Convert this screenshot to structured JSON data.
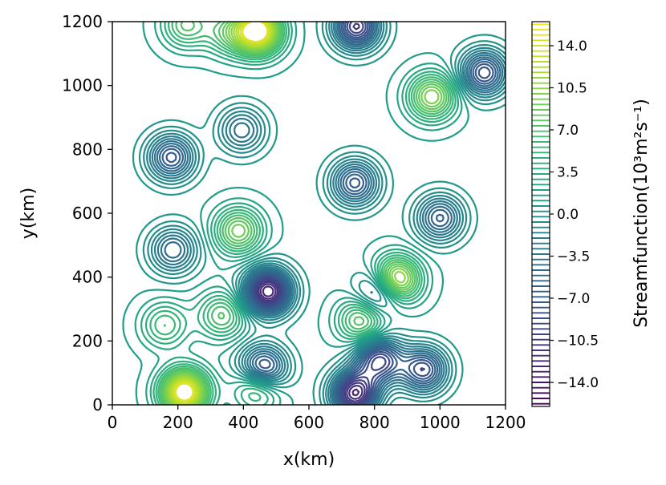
{
  "chart_data": {
    "type": "contour",
    "xlabel": "x(km)",
    "ylabel": "y(km)",
    "xlim": [
      0,
      1200
    ],
    "ylim": [
      0,
      1200
    ],
    "x_ticks": [
      0,
      200,
      400,
      600,
      800,
      1000,
      1200
    ],
    "y_ticks": [
      0,
      200,
      400,
      600,
      800,
      1000,
      1200
    ],
    "x_tick_labels": [
      "0",
      "200",
      "400",
      "600",
      "800",
      "1000",
      "1200"
    ],
    "y_tick_labels": [
      "0",
      "200",
      "400",
      "600",
      "800",
      "1000",
      "1200"
    ],
    "grid": false,
    "colormap": "viridis",
    "colorbar": {
      "label": "Streamfunction(10³m²s⁻¹)",
      "vmin": -16,
      "vmax": 16,
      "ticks": [
        14.0,
        10.5,
        7.0,
        3.5,
        0.0,
        -3.5,
        -7.0,
        -10.5,
        -14.0
      ],
      "tick_labels": [
        "14.0",
        "10.5",
        "7.0",
        "3.5",
        "0.0",
        "−3.5",
        "−7.0",
        "−10.5",
        "−14.0"
      ]
    },
    "centers": [
      {
        "x": 220,
        "y": 40,
        "value": 15
      },
      {
        "x": 445,
        "y": 1170,
        "value": 15
      },
      {
        "x": 865,
        "y": 390,
        "value": 13
      },
      {
        "x": 975,
        "y": 965,
        "value": 9
      },
      {
        "x": 385,
        "y": 545,
        "value": 8
      },
      {
        "x": 760,
        "y": 265,
        "value": 7
      },
      {
        "x": 335,
        "y": 280,
        "value": 6
      },
      {
        "x": 445,
        "y": 60,
        "value": 8
      },
      {
        "x": 225,
        "y": 1190,
        "value": 6
      },
      {
        "x": 355,
        "y": 1165,
        "value": 5
      },
      {
        "x": 160,
        "y": 250,
        "value": 5
      },
      {
        "x": 475,
        "y": 355,
        "value": -15
      },
      {
        "x": 740,
        "y": 35,
        "value": -14
      },
      {
        "x": 460,
        "y": 110,
        "value": -12
      },
      {
        "x": 815,
        "y": 140,
        "value": -11
      },
      {
        "x": 950,
        "y": 110,
        "value": -10
      },
      {
        "x": 745,
        "y": 1185,
        "value": -12
      },
      {
        "x": 1135,
        "y": 1040,
        "value": -10
      },
      {
        "x": 740,
        "y": 695,
        "value": -9
      },
      {
        "x": 180,
        "y": 775,
        "value": -9
      },
      {
        "x": 1000,
        "y": 585,
        "value": -8
      },
      {
        "x": 820,
        "y": 355,
        "value": -8
      },
      {
        "x": 185,
        "y": 485,
        "value": -7
      },
      {
        "x": 395,
        "y": 860,
        "value": -6
      }
    ]
  }
}
